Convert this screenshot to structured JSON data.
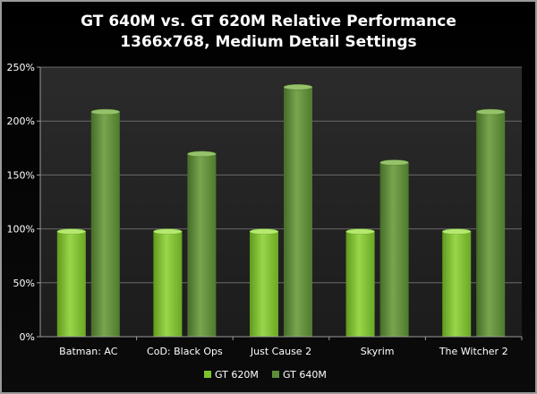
{
  "chart_data": {
    "type": "bar",
    "title": "GT 640M vs. GT 620M Relative Performance",
    "subtitle": "1366x768, Medium Detail Settings",
    "categories": [
      "Batman: AC",
      "CoD: Black Ops",
      "Just Cause 2",
      "Skyrim",
      "The Witcher 2"
    ],
    "series": [
      {
        "name": "GT 620M",
        "values": [
          100,
          100,
          100,
          100,
          100
        ],
        "color": "#7cc42e"
      },
      {
        "name": "GT 640M",
        "values": [
          211,
          172,
          234,
          164,
          211
        ],
        "color": "#5e8f38"
      }
    ],
    "y_ticks": [
      "0%",
      "50%",
      "100%",
      "150%",
      "200%",
      "250%"
    ],
    "ylim": [
      0,
      250
    ],
    "grid": true,
    "legend_position": "bottom"
  }
}
